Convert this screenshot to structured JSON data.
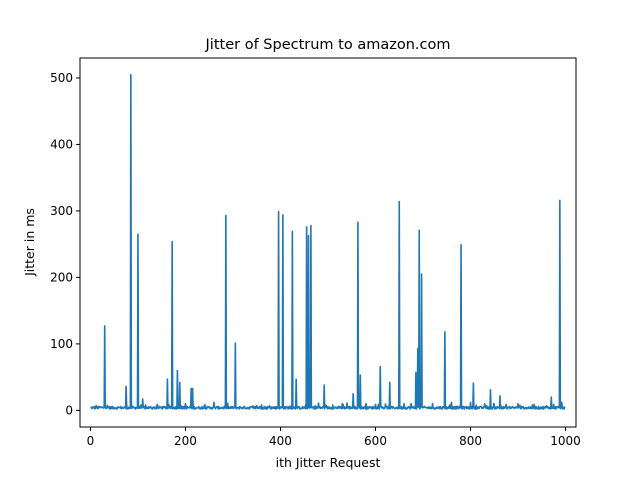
{
  "chart_data": {
    "type": "line",
    "title": "Jitter of Spectrum to amazon.com",
    "xlabel": "ith Jitter Request",
    "ylabel": "Jitter in ms",
    "xlim": [
      -22,
      1022
    ],
    "ylim": [
      -25,
      530
    ],
    "xticks": [
      0,
      200,
      400,
      600,
      800,
      1000
    ],
    "yticks": [
      0,
      100,
      200,
      300,
      400,
      500
    ],
    "grid": false,
    "legend": "none",
    "series": [
      {
        "color": "#1f77b4",
        "baseline": 4,
        "n_points": 1000,
        "spikes": [
          [
            12,
            7
          ],
          [
            20,
            5
          ],
          [
            30,
            127
          ],
          [
            31,
            10
          ],
          [
            75,
            36
          ],
          [
            76,
            10
          ],
          [
            85,
            505
          ],
          [
            86,
            12
          ],
          [
            100,
            265
          ],
          [
            110,
            17
          ],
          [
            140,
            8
          ],
          [
            162,
            47
          ],
          [
            172,
            254
          ],
          [
            183,
            60
          ],
          [
            188,
            42
          ],
          [
            200,
            10
          ],
          [
            212,
            33
          ],
          [
            215,
            33
          ],
          [
            240,
            8
          ],
          [
            260,
            12
          ],
          [
            285,
            293
          ],
          [
            305,
            101
          ],
          [
            350,
            7
          ],
          [
            360,
            8
          ],
          [
            396,
            299
          ],
          [
            405,
            294
          ],
          [
            425,
            269
          ],
          [
            433,
            47
          ],
          [
            455,
            276
          ],
          [
            459,
            263
          ],
          [
            464,
            278
          ],
          [
            480,
            11
          ],
          [
            492,
            38
          ],
          [
            510,
            8
          ],
          [
            530,
            10
          ],
          [
            540,
            11
          ],
          [
            553,
            25
          ],
          [
            563,
            283
          ],
          [
            568,
            53
          ],
          [
            580,
            10
          ],
          [
            600,
            9
          ],
          [
            610,
            66
          ],
          [
            630,
            42
          ],
          [
            650,
            314
          ],
          [
            660,
            10
          ],
          [
            675,
            10
          ],
          [
            685,
            57
          ],
          [
            689,
            93
          ],
          [
            692,
            271
          ],
          [
            697,
            205
          ],
          [
            720,
            10
          ],
          [
            746,
            118
          ],
          [
            760,
            12
          ],
          [
            780,
            249
          ],
          [
            800,
            12
          ],
          [
            806,
            41
          ],
          [
            830,
            10
          ],
          [
            842,
            31
          ],
          [
            862,
            22
          ],
          [
            875,
            9
          ],
          [
            900,
            10
          ],
          [
            930,
            8
          ],
          [
            960,
            7
          ],
          [
            970,
            20
          ],
          [
            975,
            9
          ],
          [
            988,
            316
          ],
          [
            992,
            12
          ]
        ]
      }
    ]
  }
}
